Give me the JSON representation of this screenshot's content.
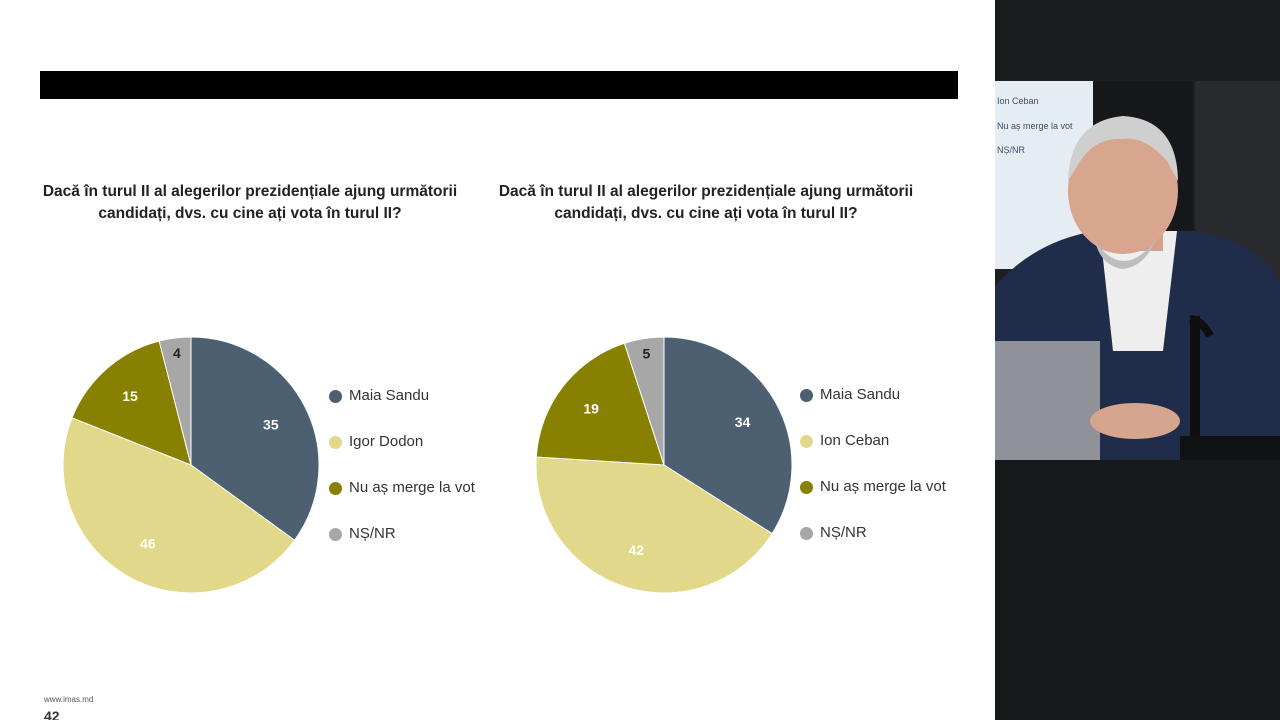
{
  "slide": {
    "footer_url": "www.imas.md",
    "page_number": "42"
  },
  "colors": {
    "maia": "#4d6072",
    "candidate": "#e2d88a",
    "novote": "#888000",
    "ns": "#a7a7a7",
    "label_dark": "#ffffff",
    "label_light": "#ffffff",
    "label_ns": "#222222"
  },
  "chart_data": [
    {
      "type": "pie",
      "title": "Dacă în turul II al alegerilor prezidențiale ajung următorii candidați, dvs. cu cine ați vota în turul II?",
      "categories": [
        "Maia Sandu",
        "Igor Dodon",
        "Nu aș merge la vot",
        "NȘ/NR"
      ],
      "values": [
        35,
        46,
        15,
        4
      ],
      "legend": "right"
    },
    {
      "type": "pie",
      "title": "Dacă în turul II al alegerilor prezidențiale ajung următorii candidați, dvs. cu cine ați vota în turul II?",
      "categories": [
        "Maia Sandu",
        "Ion Ceban",
        "Nu aș merge la vot",
        "NȘ/NR"
      ],
      "values": [
        34,
        42,
        19,
        5
      ],
      "legend": "right"
    }
  ],
  "video": {
    "monitor_items": [
      "Ion Ceban",
      "Nu aș merge la vot",
      "NȘ/NR"
    ]
  }
}
